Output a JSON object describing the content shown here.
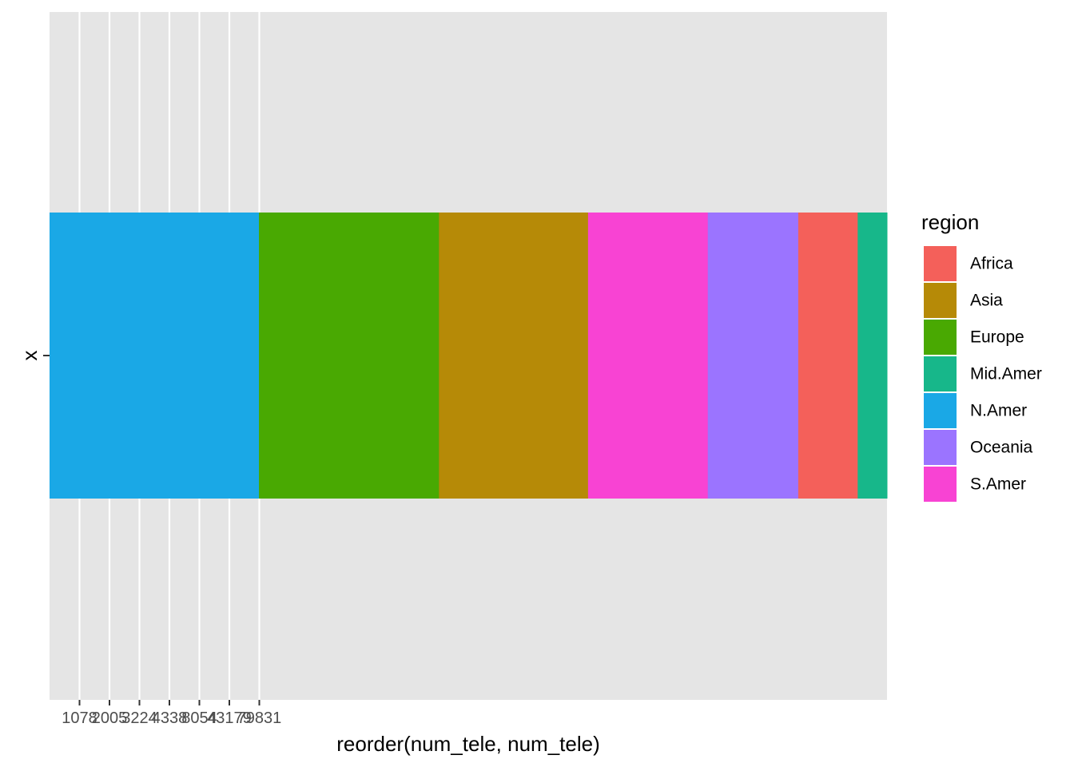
{
  "chart_data": {
    "type": "bar",
    "orientation": "horizontal",
    "stacked": true,
    "position": "fill",
    "category": "x",
    "xlabel": "reorder(num_tele, num_tele)",
    "ylabel": "",
    "x_tick_labels": [
      "1078",
      "2005",
      "3224",
      "4338",
      "8054",
      "43179",
      "79831"
    ],
    "y_tick_labels": [
      "x"
    ],
    "segments": [
      {
        "region": "N.Amer",
        "share": 0.25
      },
      {
        "region": "Europe",
        "share": 0.215
      },
      {
        "region": "Asia",
        "share": 0.178
      },
      {
        "region": "S.Amer",
        "share": 0.143
      },
      {
        "region": "Oceania",
        "share": 0.108
      },
      {
        "region": "Africa",
        "share": 0.071
      },
      {
        "region": "Mid.Amer",
        "share": 0.035
      }
    ],
    "legend": {
      "title": "region",
      "position": "right",
      "entries": [
        {
          "label": "Africa",
          "color": "#F8766D"
        },
        {
          "label": "Asia",
          "color": "#C49A00"
        },
        {
          "label": "Europe",
          "color": "#53B400"
        },
        {
          "label": "Mid.Amer",
          "color": "#00C094"
        },
        {
          "label": "N.Amer",
          "color": "#00B6EB"
        },
        {
          "label": "Oceania",
          "color": "#A58AFF"
        },
        {
          "label": "S.Amer",
          "color": "#FB61D7"
        }
      ]
    },
    "colors": {
      "Africa": "#F4605A",
      "Asia": "#B68A07",
      "Europe": "#49A902",
      "Mid.Amer": "#17B78A",
      "N.Amer": "#1AA8E6",
      "Oceania": "#9B74FF",
      "S.Amer": "#F843D3"
    },
    "panel_background": "#E5E5E5",
    "grid": true
  }
}
